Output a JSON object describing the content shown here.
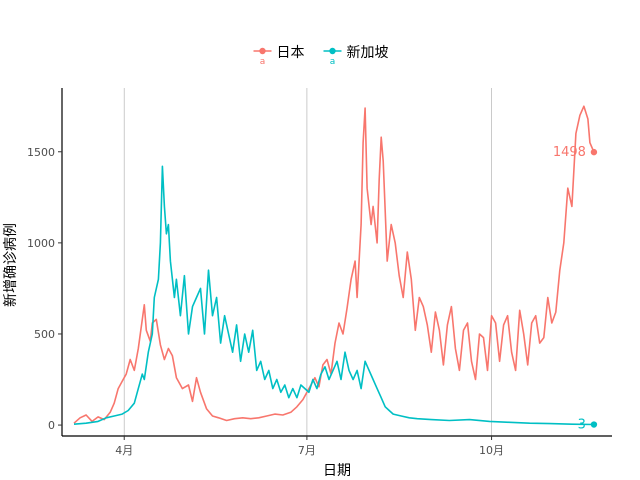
{
  "chart_data": {
    "type": "line",
    "title": "",
    "xlabel": "日期",
    "ylabel": "新增确诊病例",
    "x_domain": [
      "2020-03-01",
      "2020-11-30"
    ],
    "ylim": [
      -60,
      1850
    ],
    "x_ticks": [
      {
        "date": "2020-04-01",
        "label": "4月"
      },
      {
        "date": "2020-07-01",
        "label": "7月"
      },
      {
        "date": "2020-10-01",
        "label": "10月"
      }
    ],
    "y_ticks": [
      {
        "value": 0,
        "label": "0"
      },
      {
        "value": 500,
        "label": "500"
      },
      {
        "value": 1000,
        "label": "1000"
      },
      {
        "value": 1500,
        "label": "1500"
      }
    ],
    "grid": {
      "x_major": true,
      "y_major": false
    },
    "legend": {
      "position": "top",
      "marker": "circle-with-letter",
      "marker_letter": "a"
    },
    "series": [
      {
        "name": "日本",
        "color": "#F8766D",
        "end_label": "1498",
        "points": [
          [
            "2020-03-07",
            10
          ],
          [
            "2020-03-10",
            40
          ],
          [
            "2020-03-13",
            55
          ],
          [
            "2020-03-16",
            20
          ],
          [
            "2020-03-19",
            45
          ],
          [
            "2020-03-22",
            30
          ],
          [
            "2020-03-25",
            70
          ],
          [
            "2020-03-27",
            120
          ],
          [
            "2020-03-29",
            200
          ],
          [
            "2020-03-31",
            240
          ],
          [
            "2020-04-02",
            280
          ],
          [
            "2020-04-04",
            360
          ],
          [
            "2020-04-06",
            300
          ],
          [
            "2020-04-08",
            420
          ],
          [
            "2020-04-10",
            580
          ],
          [
            "2020-04-11",
            660
          ],
          [
            "2020-04-12",
            520
          ],
          [
            "2020-04-14",
            460
          ],
          [
            "2020-04-15",
            560
          ],
          [
            "2020-04-17",
            580
          ],
          [
            "2020-04-19",
            440
          ],
          [
            "2020-04-21",
            360
          ],
          [
            "2020-04-23",
            420
          ],
          [
            "2020-04-25",
            380
          ],
          [
            "2020-04-27",
            260
          ],
          [
            "2020-04-30",
            200
          ],
          [
            "2020-05-03",
            220
          ],
          [
            "2020-05-05",
            130
          ],
          [
            "2020-05-07",
            260
          ],
          [
            "2020-05-09",
            180
          ],
          [
            "2020-05-12",
            90
          ],
          [
            "2020-05-15",
            50
          ],
          [
            "2020-05-18",
            40
          ],
          [
            "2020-05-22",
            25
          ],
          [
            "2020-05-26",
            35
          ],
          [
            "2020-05-30",
            40
          ],
          [
            "2020-06-03",
            35
          ],
          [
            "2020-06-07",
            40
          ],
          [
            "2020-06-11",
            50
          ],
          [
            "2020-06-15",
            60
          ],
          [
            "2020-06-19",
            55
          ],
          [
            "2020-06-23",
            70
          ],
          [
            "2020-06-26",
            100
          ],
          [
            "2020-06-29",
            140
          ],
          [
            "2020-07-02",
            200
          ],
          [
            "2020-07-05",
            260
          ],
          [
            "2020-07-07",
            210
          ],
          [
            "2020-07-09",
            330
          ],
          [
            "2020-07-11",
            360
          ],
          [
            "2020-07-13",
            280
          ],
          [
            "2020-07-15",
            450
          ],
          [
            "2020-07-17",
            560
          ],
          [
            "2020-07-19",
            500
          ],
          [
            "2020-07-21",
            640
          ],
          [
            "2020-07-23",
            800
          ],
          [
            "2020-07-25",
            900
          ],
          [
            "2020-07-26",
            700
          ],
          [
            "2020-07-28",
            1100
          ],
          [
            "2020-07-29",
            1550
          ],
          [
            "2020-07-30",
            1740
          ],
          [
            "2020-07-31",
            1300
          ],
          [
            "2020-08-02",
            1100
          ],
          [
            "2020-08-03",
            1200
          ],
          [
            "2020-08-05",
            1000
          ],
          [
            "2020-08-06",
            1350
          ],
          [
            "2020-08-07",
            1580
          ],
          [
            "2020-08-08",
            1450
          ],
          [
            "2020-08-10",
            900
          ],
          [
            "2020-08-12",
            1100
          ],
          [
            "2020-08-14",
            1000
          ],
          [
            "2020-08-16",
            820
          ],
          [
            "2020-08-18",
            700
          ],
          [
            "2020-08-20",
            950
          ],
          [
            "2020-08-22",
            800
          ],
          [
            "2020-08-24",
            520
          ],
          [
            "2020-08-26",
            700
          ],
          [
            "2020-08-28",
            650
          ],
          [
            "2020-08-30",
            550
          ],
          [
            "2020-09-01",
            400
          ],
          [
            "2020-09-03",
            620
          ],
          [
            "2020-09-05",
            520
          ],
          [
            "2020-09-07",
            330
          ],
          [
            "2020-09-09",
            550
          ],
          [
            "2020-09-11",
            650
          ],
          [
            "2020-09-13",
            420
          ],
          [
            "2020-09-15",
            300
          ],
          [
            "2020-09-17",
            520
          ],
          [
            "2020-09-19",
            560
          ],
          [
            "2020-09-21",
            350
          ],
          [
            "2020-09-23",
            250
          ],
          [
            "2020-09-25",
            500
          ],
          [
            "2020-09-27",
            480
          ],
          [
            "2020-09-29",
            300
          ],
          [
            "2020-10-01",
            600
          ],
          [
            "2020-10-03",
            560
          ],
          [
            "2020-10-05",
            350
          ],
          [
            "2020-10-07",
            550
          ],
          [
            "2020-10-09",
            600
          ],
          [
            "2020-10-11",
            400
          ],
          [
            "2020-10-13",
            300
          ],
          [
            "2020-10-15",
            630
          ],
          [
            "2020-10-17",
            500
          ],
          [
            "2020-10-19",
            330
          ],
          [
            "2020-10-21",
            560
          ],
          [
            "2020-10-23",
            600
          ],
          [
            "2020-10-25",
            450
          ],
          [
            "2020-10-27",
            480
          ],
          [
            "2020-10-29",
            700
          ],
          [
            "2020-10-31",
            560
          ],
          [
            "2020-11-02",
            620
          ],
          [
            "2020-11-04",
            850
          ],
          [
            "2020-11-06",
            1000
          ],
          [
            "2020-11-08",
            1300
          ],
          [
            "2020-11-10",
            1200
          ],
          [
            "2020-11-12",
            1600
          ],
          [
            "2020-11-14",
            1700
          ],
          [
            "2020-11-16",
            1750
          ],
          [
            "2020-11-18",
            1680
          ],
          [
            "2020-11-19",
            1550
          ],
          [
            "2020-11-21",
            1498
          ]
        ]
      },
      {
        "name": "新加坡",
        "color": "#00BFC4",
        "end_label": "3",
        "points": [
          [
            "2020-03-07",
            5
          ],
          [
            "2020-03-13",
            10
          ],
          [
            "2020-03-19",
            20
          ],
          [
            "2020-03-23",
            40
          ],
          [
            "2020-03-27",
            50
          ],
          [
            "2020-03-31",
            60
          ],
          [
            "2020-04-03",
            80
          ],
          [
            "2020-04-06",
            120
          ],
          [
            "2020-04-08",
            200
          ],
          [
            "2020-04-10",
            280
          ],
          [
            "2020-04-11",
            250
          ],
          [
            "2020-04-13",
            400
          ],
          [
            "2020-04-15",
            500
          ],
          [
            "2020-04-16",
            700
          ],
          [
            "2020-04-18",
            800
          ],
          [
            "2020-04-19",
            1000
          ],
          [
            "2020-04-20",
            1420
          ],
          [
            "2020-04-21",
            1200
          ],
          [
            "2020-04-22",
            1050
          ],
          [
            "2020-04-23",
            1100
          ],
          [
            "2020-04-24",
            900
          ],
          [
            "2020-04-26",
            700
          ],
          [
            "2020-04-27",
            800
          ],
          [
            "2020-04-29",
            600
          ],
          [
            "2020-05-01",
            820
          ],
          [
            "2020-05-03",
            500
          ],
          [
            "2020-05-05",
            650
          ],
          [
            "2020-05-07",
            700
          ],
          [
            "2020-05-09",
            750
          ],
          [
            "2020-05-11",
            500
          ],
          [
            "2020-05-13",
            850
          ],
          [
            "2020-05-15",
            600
          ],
          [
            "2020-05-17",
            700
          ],
          [
            "2020-05-19",
            450
          ],
          [
            "2020-05-21",
            600
          ],
          [
            "2020-05-23",
            500
          ],
          [
            "2020-05-25",
            400
          ],
          [
            "2020-05-27",
            550
          ],
          [
            "2020-05-29",
            350
          ],
          [
            "2020-05-31",
            500
          ],
          [
            "2020-06-02",
            400
          ],
          [
            "2020-06-04",
            520
          ],
          [
            "2020-06-06",
            300
          ],
          [
            "2020-06-08",
            350
          ],
          [
            "2020-06-10",
            250
          ],
          [
            "2020-06-12",
            300
          ],
          [
            "2020-06-14",
            200
          ],
          [
            "2020-06-16",
            250
          ],
          [
            "2020-06-18",
            180
          ],
          [
            "2020-06-20",
            220
          ],
          [
            "2020-06-22",
            150
          ],
          [
            "2020-06-24",
            200
          ],
          [
            "2020-06-26",
            150
          ],
          [
            "2020-06-28",
            220
          ],
          [
            "2020-06-30",
            200
          ],
          [
            "2020-07-02",
            180
          ],
          [
            "2020-07-04",
            250
          ],
          [
            "2020-07-06",
            200
          ],
          [
            "2020-07-08",
            280
          ],
          [
            "2020-07-10",
            320
          ],
          [
            "2020-07-12",
            250
          ],
          [
            "2020-07-14",
            300
          ],
          [
            "2020-07-16",
            350
          ],
          [
            "2020-07-18",
            250
          ],
          [
            "2020-07-20",
            400
          ],
          [
            "2020-07-22",
            300
          ],
          [
            "2020-07-24",
            250
          ],
          [
            "2020-07-26",
            300
          ],
          [
            "2020-07-28",
            200
          ],
          [
            "2020-07-30",
            350
          ],
          [
            "2020-08-01",
            300
          ],
          [
            "2020-08-03",
            250
          ],
          [
            "2020-08-05",
            200
          ],
          [
            "2020-08-07",
            150
          ],
          [
            "2020-08-09",
            100
          ],
          [
            "2020-08-11",
            80
          ],
          [
            "2020-08-13",
            60
          ],
          [
            "2020-08-17",
            50
          ],
          [
            "2020-08-21",
            40
          ],
          [
            "2020-08-25",
            35
          ],
          [
            "2020-09-01",
            30
          ],
          [
            "2020-09-10",
            25
          ],
          [
            "2020-09-20",
            30
          ],
          [
            "2020-09-30",
            20
          ],
          [
            "2020-10-10",
            15
          ],
          [
            "2020-10-20",
            10
          ],
          [
            "2020-10-30",
            8
          ],
          [
            "2020-11-10",
            5
          ],
          [
            "2020-11-21",
            3
          ]
        ]
      }
    ]
  }
}
